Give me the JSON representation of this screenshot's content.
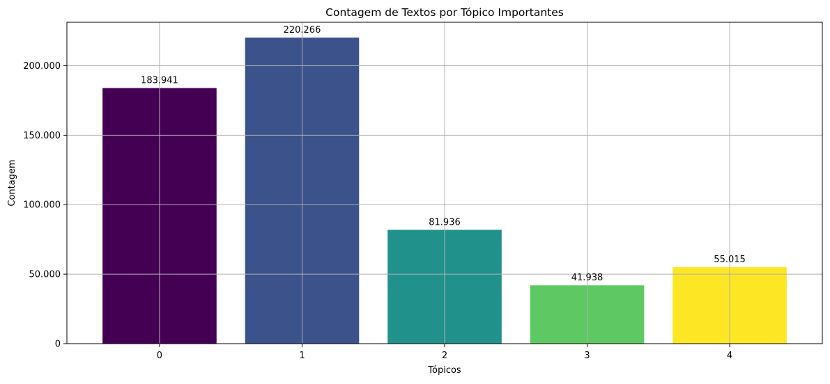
{
  "chart_data": {
    "type": "bar",
    "title": "Contagem de Textos por Tópico Importantes",
    "xlabel": "Tópicos",
    "ylabel": "Contagem",
    "categories": [
      "0",
      "1",
      "2",
      "3",
      "4"
    ],
    "values": [
      183941,
      220266,
      81936,
      41938,
      55015
    ],
    "value_labels": [
      "183.941",
      "220.266",
      "81.936",
      "41.938",
      "55.015"
    ],
    "colors": [
      "#440154",
      "#3b528b",
      "#21918c",
      "#5ec962",
      "#fde725"
    ],
    "ylim": [
      0,
      231280
    ],
    "yticks": [
      0,
      50000,
      100000,
      150000,
      200000
    ],
    "ytick_labels": [
      "0",
      "50.000",
      "100.000",
      "150.000",
      "200.000"
    ],
    "grid": true,
    "legend": false
  }
}
